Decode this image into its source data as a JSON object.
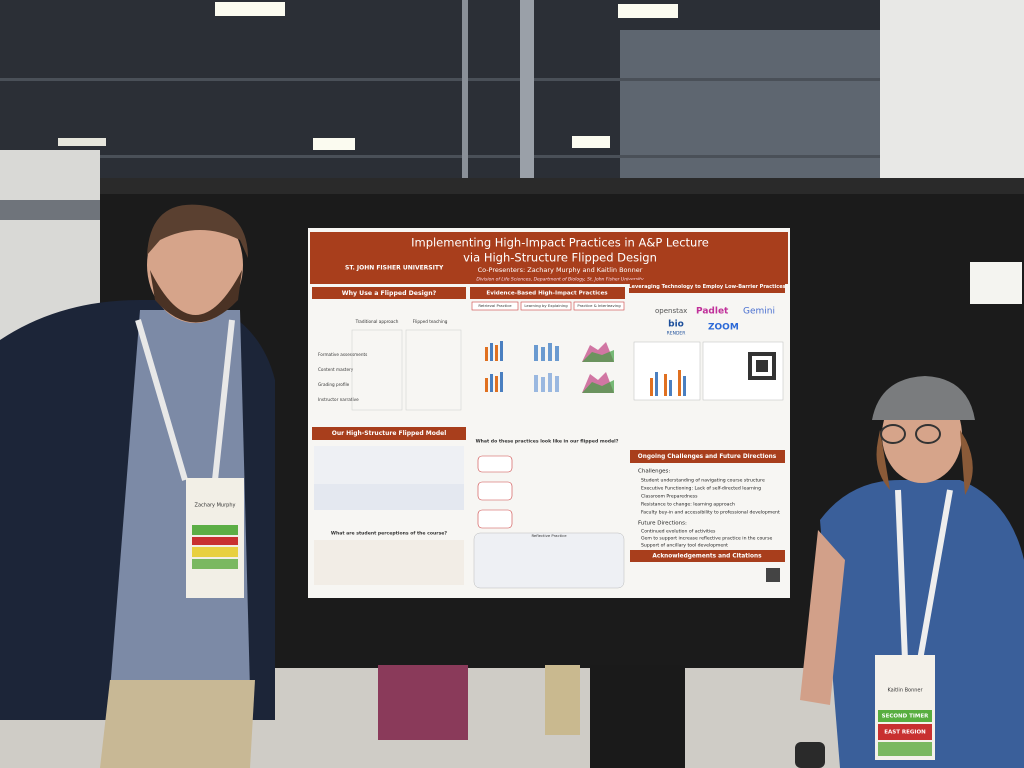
{
  "poster": {
    "university": "ST. JOHN FISHER UNIVERSITY",
    "title_line1": "Implementing High-Impact Practices in A&P Lecture",
    "title_line2": "via High-Structure Flipped Design",
    "presenters": "Co-Presenters: Zachary Murphy and Kaitlin Bonner",
    "affiliation": "Division of Life Sciences, Department of Biology, St. John Fisher University",
    "left_column": {
      "header": "Why Use a Flipped Design?",
      "col_a": "Traditional approach",
      "col_b": "Flipped teaching",
      "rows": [
        "Formative assessments",
        "Content mastery",
        "Grading profile",
        "Instructor narrative"
      ],
      "model_header": "Our High-Structure Flipped Model",
      "perceptions_header": "What are student perceptions of the course?"
    },
    "middle_column": {
      "header": "Evidence-Based High-Impact Practices",
      "tabs": [
        "Retrieval Practice",
        "Learning by Explaining",
        "Practice & Interleaving"
      ],
      "practices_header": "What do these practices look like in our flipped model?",
      "reflective": "Reflective Practice"
    },
    "right_column": {
      "header": "Leveraging Technology to Employ Low-Barrier Practices",
      "logos": [
        "openstax",
        "Padlet",
        "Gemini",
        "bio",
        "RENDER",
        "ZOOM"
      ],
      "challenges_header": "Ongoing Challenges and Future Directions",
      "challenges_title": "Challenges:",
      "challenges": [
        "Student understanding of navigating course structure",
        "Executive Functioning: Lack of self-directed learning",
        "Classroom Preparedness",
        "Resistance to change: learning approach",
        "Faculty buy-in and accessibility to professional development"
      ],
      "future_title": "Future Directions:",
      "future": [
        "Continued evolution of activities",
        "Gem to support increase reflective practice in the course",
        "Support of ancillary tool development",
        "Use of OER requires continued development."
      ],
      "ack_header": "Acknowledgements and Citations"
    }
  },
  "badges": {
    "left": {
      "name": "Zachary Murphy"
    },
    "right": {
      "name": "Kaitlin Bonner",
      "ribbons": [
        "SECOND TIMER",
        "EAST REGION"
      ]
    }
  }
}
